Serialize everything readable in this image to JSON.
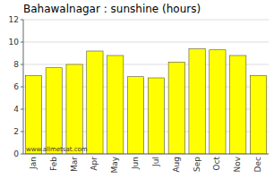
{
  "chart_data": {
    "type": "bar",
    "title": "Bahawalnagar : sunshine (hours)",
    "categories": [
      "Jan",
      "Feb",
      "Mar",
      "Apr",
      "May",
      "Jun",
      "Jul",
      "Aug",
      "Sep",
      "Oct",
      "Nov",
      "Dec"
    ],
    "values": [
      7.0,
      7.7,
      8.0,
      9.2,
      8.8,
      6.9,
      6.8,
      8.2,
      9.4,
      9.3,
      8.8,
      7.0
    ],
    "color": "#ffff00",
    "ylim": [
      0,
      12
    ],
    "yticks": [
      0,
      2,
      4,
      6,
      8,
      10,
      12
    ],
    "grid": true,
    "annotations": [
      "www.allmetsat.com"
    ]
  }
}
